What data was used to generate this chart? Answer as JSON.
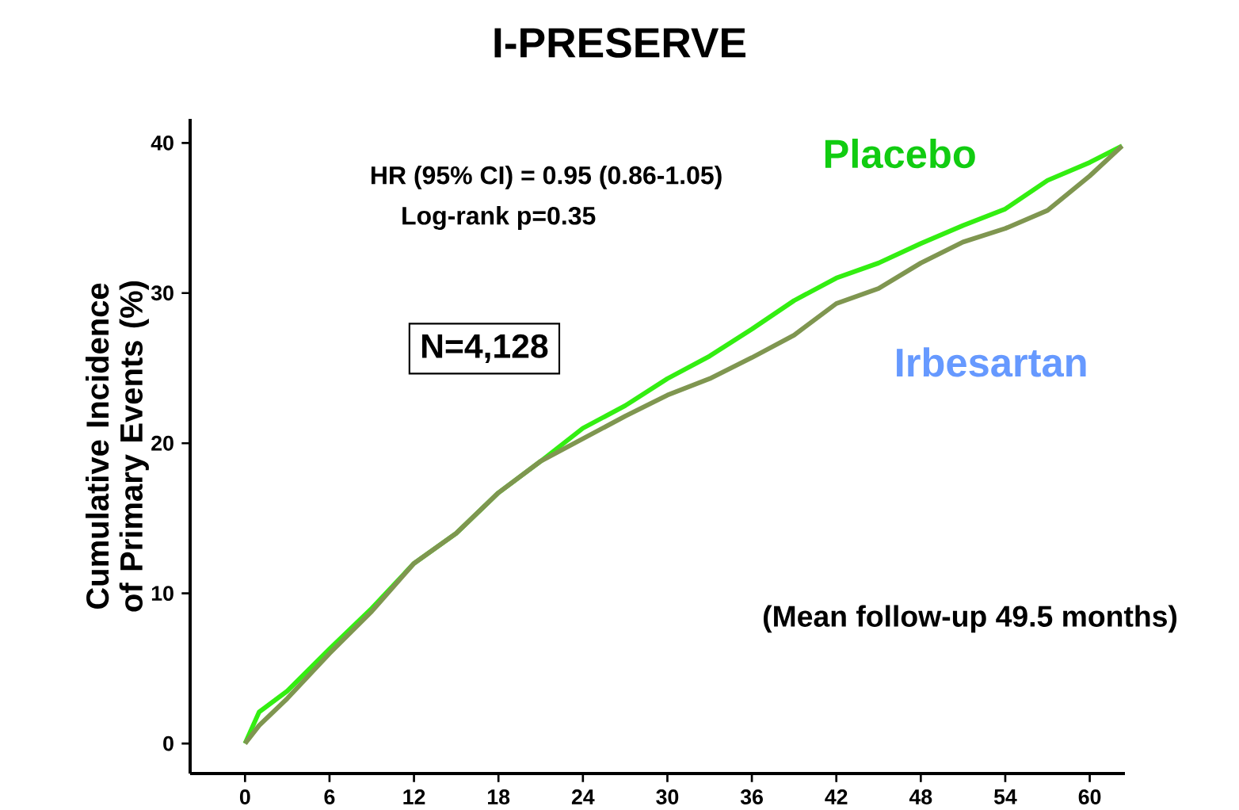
{
  "chart_data": {
    "type": "line",
    "title": "I-PRESERVE",
    "ylabel": "Cumulative Incidence of Primary Events (%)",
    "xlim": [
      -3.9,
      62.5
    ],
    "ylim": [
      -2,
      41.6
    ],
    "xticks": [
      0,
      6,
      12,
      18,
      24,
      30,
      36,
      42,
      48,
      54,
      60
    ],
    "yticks": [
      0,
      10,
      20,
      30,
      40
    ],
    "grid": false,
    "legend": false,
    "marker": "none",
    "line_style": "solid",
    "annotations": [
      "HR (95% CI) = 0.95 (0.86-1.05)",
      "Log-rank p=0.35",
      "N=4,128",
      "(Mean follow-up 49.5 months)"
    ],
    "series": [
      {
        "name": "Placebo",
        "color": "#33ee11",
        "x": [
          0,
          1,
          3,
          6,
          9,
          12,
          15,
          18,
          21,
          24,
          27,
          30,
          33,
          36,
          39,
          42,
          45,
          48,
          51,
          54,
          57,
          60,
          62.3
        ],
        "values": [
          0,
          2.1,
          3.5,
          6.3,
          9.0,
          12.0,
          14.0,
          16.7,
          18.8,
          21.0,
          22.5,
          24.3,
          25.8,
          27.6,
          29.5,
          31.0,
          32.0,
          33.3,
          34.5,
          35.6,
          37.5,
          38.7,
          39.8
        ]
      },
      {
        "name": "Irbesartan",
        "color": "#7f9650",
        "x": [
          0,
          1,
          3,
          6,
          9,
          12,
          15,
          18,
          21,
          24,
          27,
          30,
          33,
          36,
          39,
          42,
          45,
          48,
          51,
          54,
          57,
          60,
          62.3
        ],
        "values": [
          0,
          1.2,
          3.0,
          6.0,
          8.8,
          12.0,
          14.0,
          16.7,
          18.8,
          20.3,
          21.8,
          23.2,
          24.3,
          25.7,
          27.2,
          29.3,
          30.3,
          32.0,
          33.4,
          34.3,
          35.5,
          37.8,
          39.8
        ]
      }
    ]
  }
}
